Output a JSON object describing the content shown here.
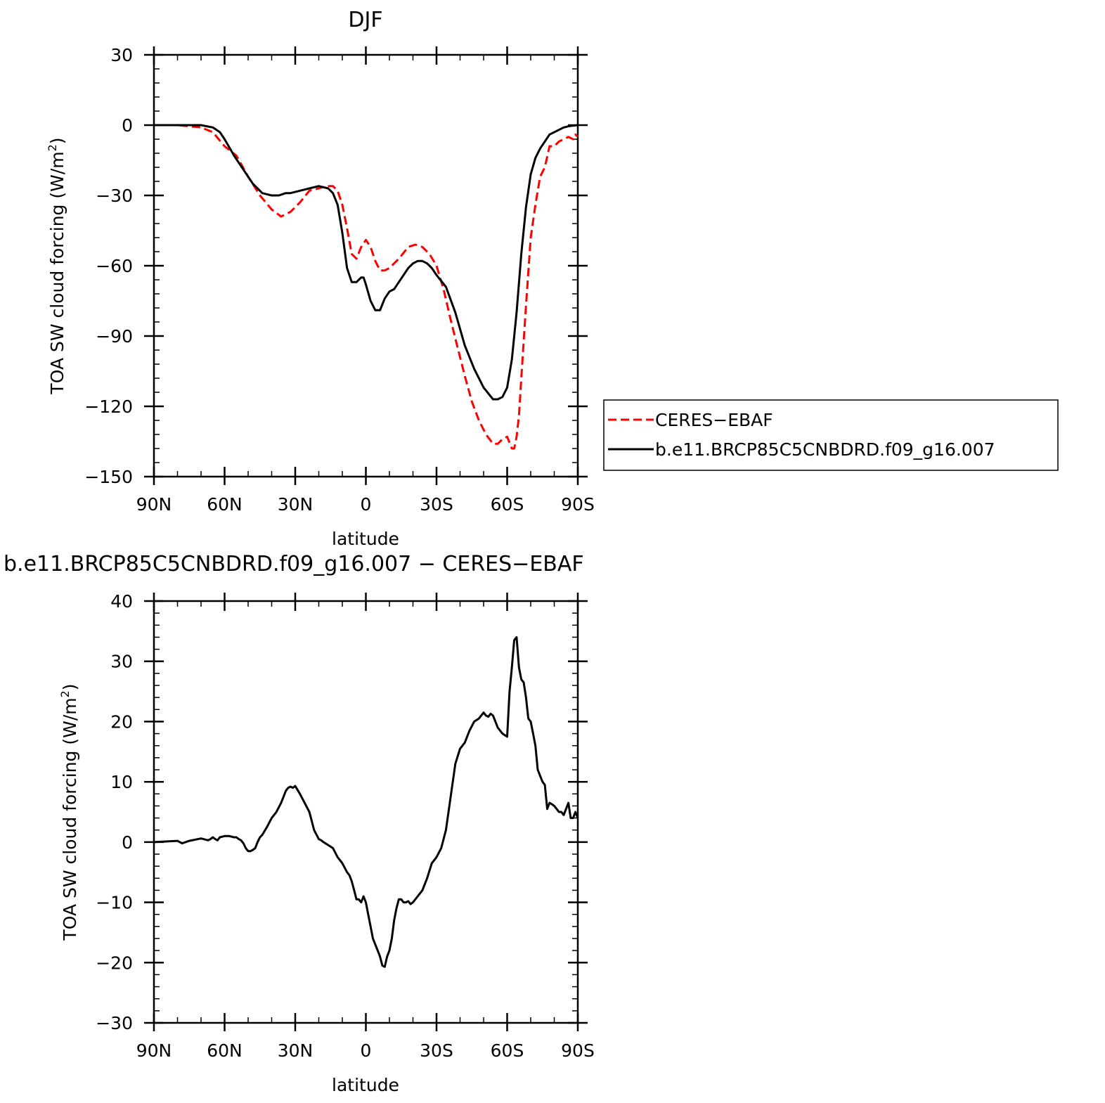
{
  "chart_data": [
    {
      "type": "line",
      "title": "DJF",
      "xlabel": "latitude",
      "ylabel": "TOA SW cloud forcing (W/m²)",
      "ylabel_text": "TOA SW cloud forcing (W/m",
      "ylabel_sup": "2",
      "ylabel_close": ")",
      "xlim": [
        -90,
        90
      ],
      "ylim": [
        -150,
        30
      ],
      "xticks": [
        -90,
        -60,
        -30,
        0,
        30,
        60,
        90
      ],
      "xtick_labels": [
        "90N",
        "60N",
        "30N",
        "0",
        "30S",
        "60S",
        "90S"
      ],
      "yticks": [
        30,
        0,
        -30,
        -60,
        -90,
        -120,
        -150
      ],
      "ytick_labels": [
        "30",
        "0",
        "−30",
        "−60",
        "−90",
        "−120",
        "−150"
      ],
      "legend_placement": "right",
      "series": [
        {
          "name": "CERES−EBAF",
          "color": "#ff0000",
          "style": "dashed",
          "x": [
            -90,
            -80,
            -70,
            -65,
            -60,
            -55,
            -50,
            -45,
            -40,
            -36,
            -32,
            -28,
            -24,
            -20,
            -17,
            -14,
            -12,
            -10,
            -8,
            -6,
            -4,
            -2,
            0,
            2,
            4,
            6,
            8,
            10,
            14,
            18,
            21,
            24,
            27,
            30,
            33,
            36,
            39,
            42,
            45,
            48,
            51,
            54,
            56,
            58,
            60,
            62,
            63,
            64,
            65,
            66,
            68,
            70,
            72,
            74,
            76,
            78,
            80,
            82,
            84,
            86,
            88,
            89,
            90
          ],
          "y": [
            0,
            0,
            -1,
            -3,
            -9,
            -13,
            -22,
            -30,
            -36,
            -39,
            -37,
            -33,
            -28,
            -27,
            -26,
            -26,
            -28,
            -34,
            -44,
            -55,
            -57,
            -52,
            -49,
            -52,
            -58,
            -62,
            -62,
            -61,
            -57,
            -52,
            -51,
            -52,
            -55,
            -60,
            -70,
            -83,
            -95,
            -107,
            -118,
            -126,
            -132,
            -136,
            -136,
            -134,
            -133,
            -138,
            -138,
            -133,
            -124,
            -108,
            -77,
            -48,
            -34,
            -22,
            -18,
            -9,
            -9,
            -7,
            -6,
            -5,
            -6,
            -4,
            -5
          ]
        },
        {
          "name": "b.e11.BRCP85C5CNBDRD.f09_g16.007",
          "color": "#000000",
          "style": "solid",
          "x": [
            -90,
            -80,
            -70,
            -65,
            -62,
            -60,
            -56,
            -52,
            -48,
            -44,
            -40,
            -37,
            -34,
            -32,
            -28,
            -24,
            -20,
            -16,
            -14,
            -12,
            -10,
            -8,
            -6,
            -4,
            -2,
            -1,
            0,
            2,
            4,
            6,
            8,
            10,
            12,
            14,
            16,
            18,
            20,
            22,
            24,
            26,
            28,
            30,
            34,
            38,
            42,
            46,
            50,
            54,
            56,
            58,
            60,
            62,
            64,
            66,
            68,
            70,
            72,
            74,
            76,
            78,
            80,
            82,
            84,
            86,
            88,
            90
          ],
          "y": [
            0,
            0,
            0,
            -1,
            -3,
            -6,
            -13,
            -19,
            -25,
            -29,
            -30,
            -30,
            -29,
            -29,
            -28,
            -27,
            -26,
            -27,
            -29,
            -34,
            -46,
            -61,
            -67,
            -67,
            -65,
            -65,
            -68,
            -75,
            -79,
            -79,
            -74,
            -71,
            -70,
            -67,
            -64,
            -61,
            -59,
            -58,
            -58,
            -59,
            -61,
            -64,
            -69,
            -80,
            -94,
            -104,
            -112,
            -117,
            -117,
            -116,
            -112,
            -100,
            -80,
            -55,
            -35,
            -21,
            -14,
            -10,
            -7,
            -4,
            -3,
            -2,
            -1,
            -0.5,
            -0.2,
            0
          ]
        }
      ]
    },
    {
      "type": "line",
      "title": "b.e11.BRCP85C5CNBDRD.f09_g16.007 − CERES−EBAF",
      "xlabel": "latitude",
      "ylabel": "TOA SW cloud forcing (W/m²)",
      "ylabel_text": "TOA SW cloud forcing (W/m",
      "ylabel_sup": "2",
      "ylabel_close": ")",
      "xlim": [
        -90,
        90
      ],
      "ylim": [
        -30,
        40
      ],
      "xticks": [
        -90,
        -60,
        -30,
        0,
        30,
        60,
        90
      ],
      "xtick_labels": [
        "90N",
        "60N",
        "30N",
        "0",
        "30S",
        "60S",
        "90S"
      ],
      "yticks": [
        40,
        30,
        20,
        10,
        0,
        -10,
        -20,
        -30
      ],
      "ytick_labels": [
        "40",
        "30",
        "20",
        "10",
        "0",
        "−10",
        "−20",
        "−30"
      ],
      "series": [
        {
          "color": "#000000",
          "style": "solid",
          "x": [
            -90,
            -80,
            -79,
            -78,
            -75,
            -70,
            -67,
            -66,
            -65,
            -64,
            -63,
            -62,
            -60,
            -58,
            -56,
            -55,
            -54,
            -53,
            -52,
            -51,
            -50,
            -49,
            -48,
            -47,
            -46,
            -45,
            -44,
            -42,
            -40,
            -38,
            -36,
            -35,
            -34,
            -33,
            -32,
            -31,
            -30,
            -28,
            -26,
            -24,
            -23,
            -22,
            -20,
            -19,
            -18,
            -16,
            -14,
            -12,
            -10,
            -8,
            -7,
            -6,
            -5,
            -4,
            -3,
            -2,
            -1,
            0,
            1,
            2,
            3,
            4,
            5,
            6,
            7,
            8,
            9,
            10,
            11,
            12,
            13,
            14,
            15,
            16,
            17,
            18,
            19,
            20,
            22,
            24,
            26,
            28,
            30,
            32,
            34,
            36,
            38,
            40,
            42,
            44,
            46,
            48,
            50,
            51,
            52,
            53,
            54,
            55,
            56,
            58,
            60,
            61,
            62,
            63,
            64,
            65,
            66,
            67,
            68,
            69,
            70,
            71,
            72,
            73,
            74,
            75,
            76,
            77,
            78,
            79,
            80,
            81,
            82,
            83,
            84,
            85,
            86,
            87,
            88,
            89,
            90
          ],
          "y": [
            0,
            0.2,
            0,
            -0.2,
            0.2,
            0.6,
            0.3,
            0.5,
            0.8,
            0.5,
            0.3,
            0.8,
            1.0,
            1.0,
            0.8,
            0.8,
            0.5,
            0.3,
            -0.2,
            -1.0,
            -1.5,
            -1.5,
            -1.3,
            -1.0,
            0,
            0.8,
            1.2,
            2.5,
            4.0,
            5.0,
            6.5,
            7.5,
            8.5,
            9.0,
            9.2,
            9.0,
            9.3,
            8.0,
            6.5,
            5.0,
            3.5,
            2.0,
            0.5,
            0.3,
            0,
            -0.5,
            -1.0,
            -2.5,
            -3.5,
            -5.0,
            -5.5,
            -6.5,
            -8.0,
            -9.5,
            -9.5,
            -10,
            -9.0,
            -10,
            -12,
            -14,
            -16,
            -17,
            -18,
            -19,
            -20.5,
            -20.7,
            -19,
            -18,
            -16,
            -13,
            -11,
            -9.5,
            -9.5,
            -10,
            -10,
            -9.8,
            -10.3,
            -10,
            -9.0,
            -8.0,
            -6.0,
            -3.5,
            -2.5,
            -1.0,
            2.0,
            7.5,
            13,
            15.5,
            16.5,
            18.5,
            20,
            20.5,
            21.5,
            21.0,
            20.8,
            21.3,
            21.0,
            20.0,
            19.0,
            18.0,
            17.5,
            25.0,
            29.0,
            33.5,
            34.0,
            29.0,
            27.0,
            26.5,
            24.0,
            20.5,
            20.0,
            18.0,
            16.0,
            12.0,
            11.0,
            10.0,
            9.5,
            5.5,
            6.5,
            6.3,
            6.0,
            5.5,
            5.0,
            5.0,
            4.5,
            5.5,
            6.5,
            4.0,
            4.0,
            5.0,
            4.0
          ]
        }
      ]
    }
  ]
}
